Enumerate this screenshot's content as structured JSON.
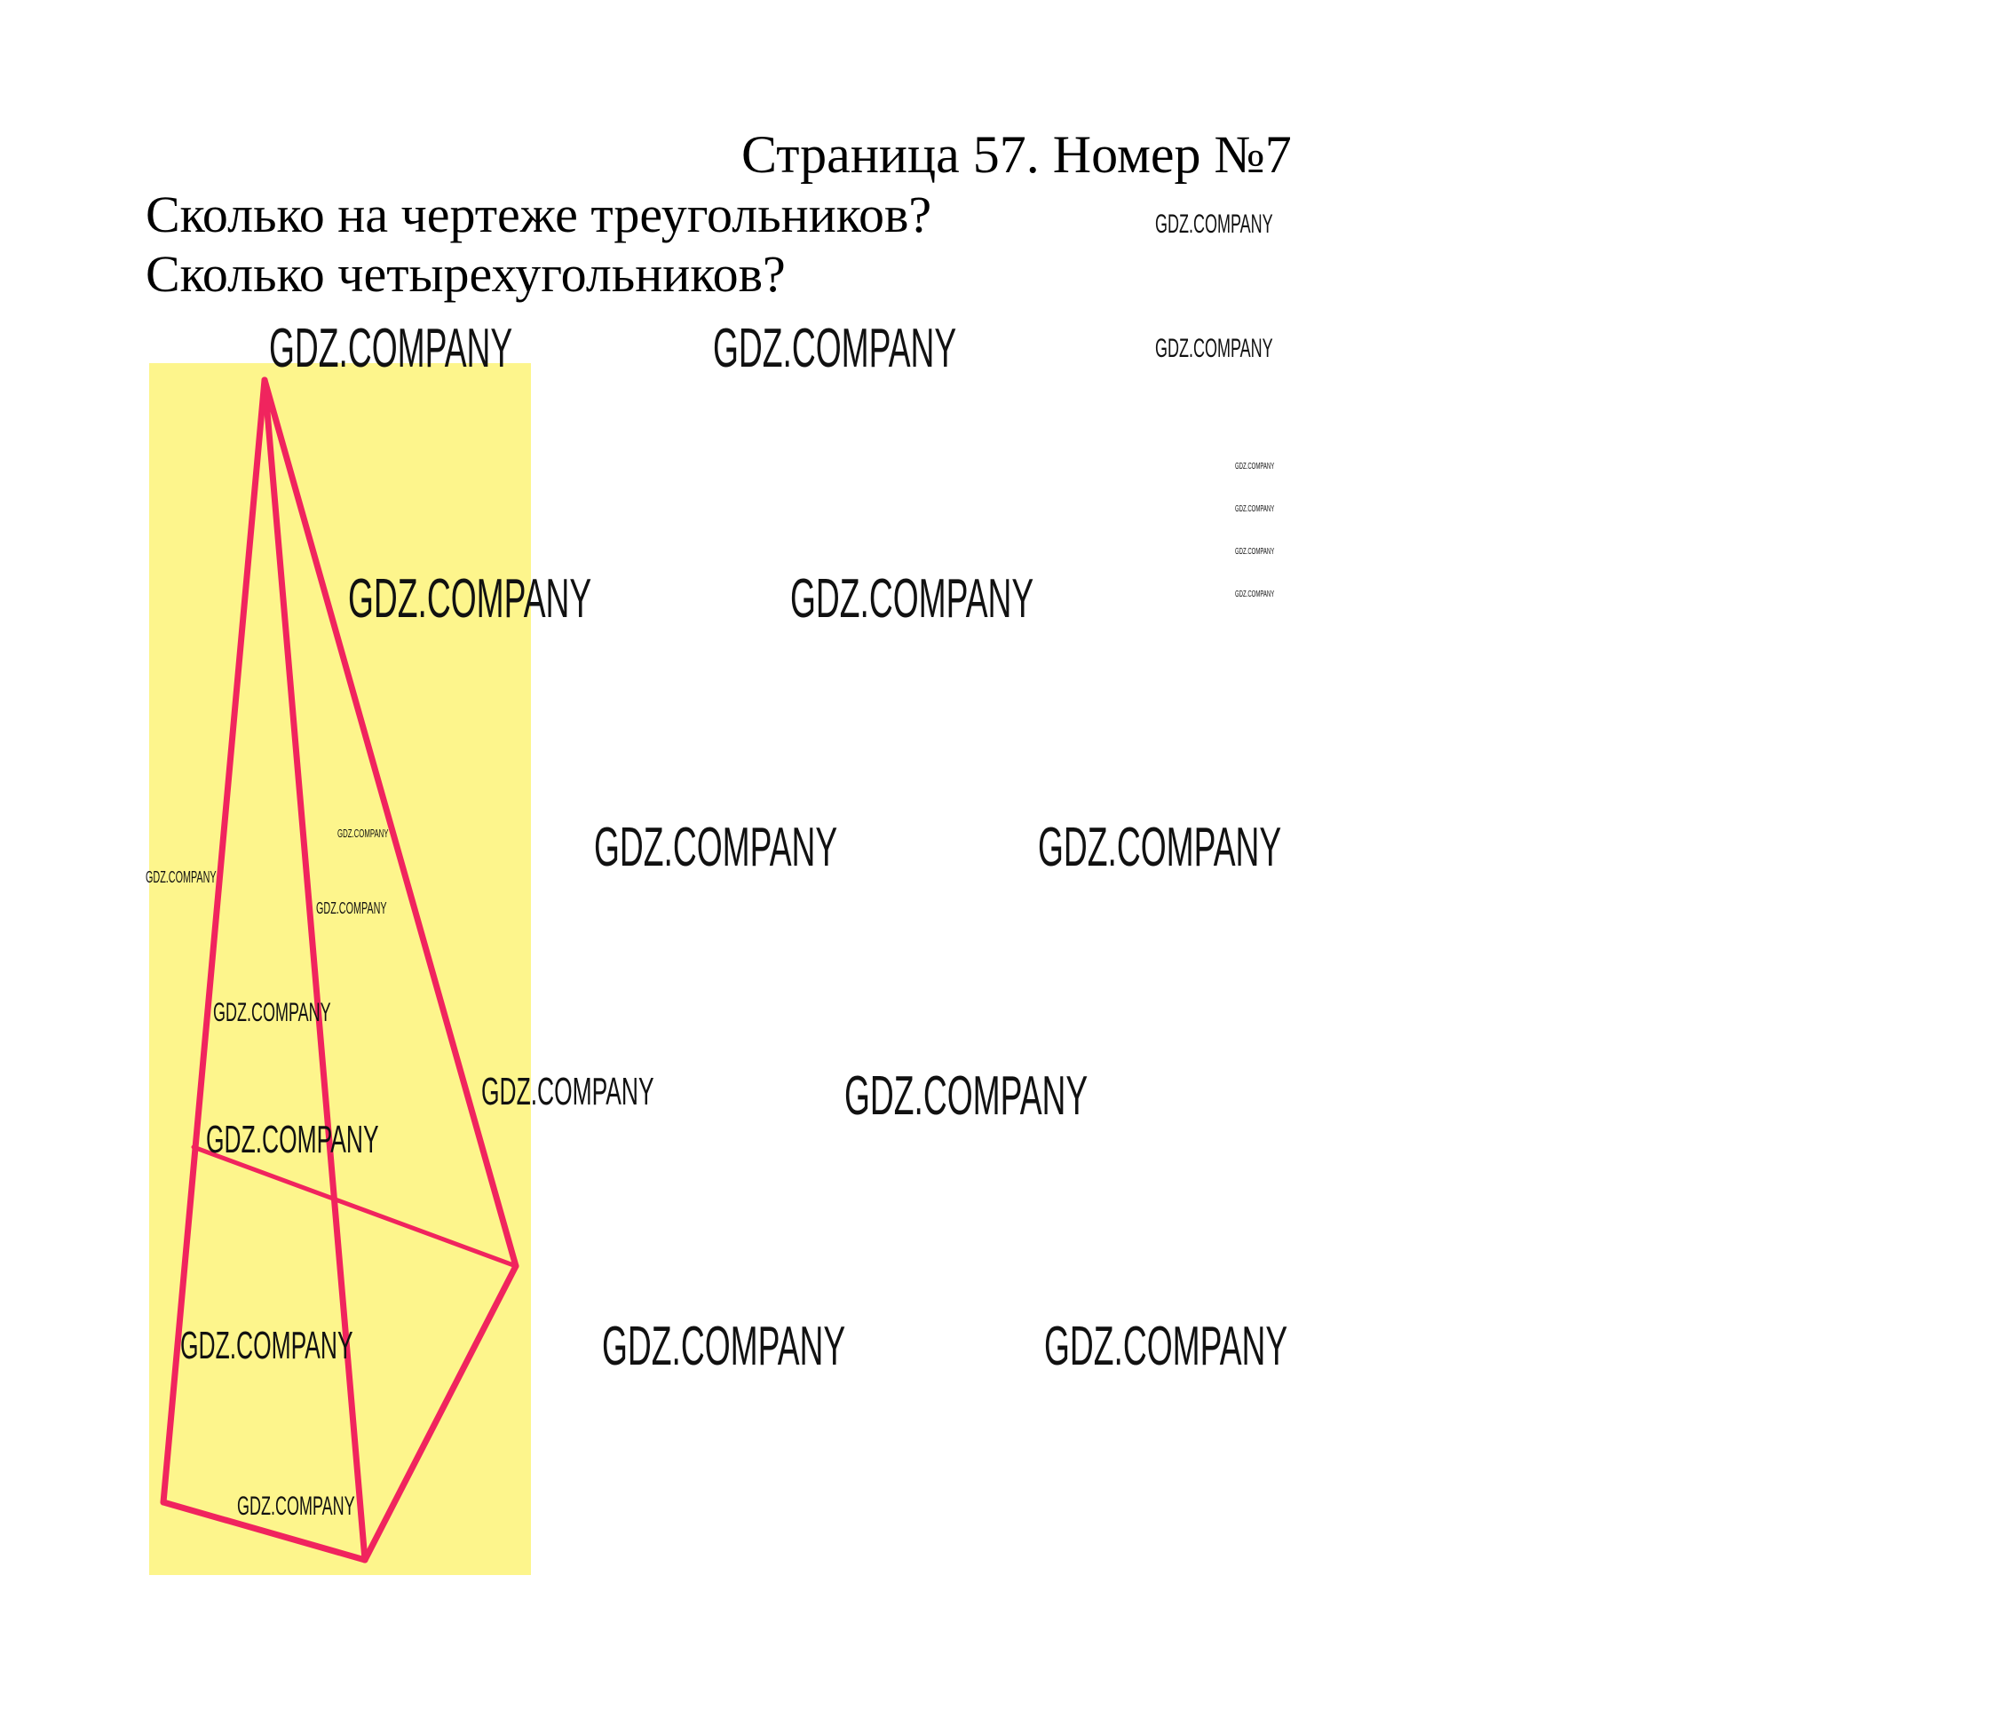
{
  "header": {
    "title": "Страница 57. Номер №7"
  },
  "question": {
    "line1": "Сколько на чертеже треугольников?",
    "line2": "Сколько четырехугольников?"
  },
  "figure": {
    "background_color": "#fdf58c",
    "line_color": "#f0245e"
  },
  "watermark": {
    "text": "GDZ.COMPANY"
  }
}
